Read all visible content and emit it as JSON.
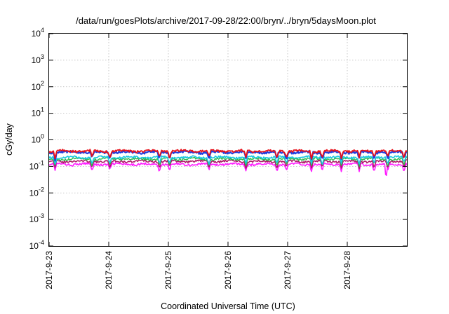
{
  "chart_data": {
    "type": "line",
    "title": "/data/run/goesPlots/archive/2017-09-28/22:00/bryn/../bryn/5daysMoon.plot",
    "xlabel": "Coordinated Universal Time (UTC)",
    "ylabel": "cGy/day",
    "yscale": "log",
    "ylim_exponents": [
      -4,
      4
    ],
    "y_tick_exponents": [
      -4,
      -3,
      -2,
      -1,
      0,
      1,
      2,
      3,
      4
    ],
    "y_tick_base": "10",
    "xlim_days": [
      0,
      6.0
    ],
    "x_ticks": [
      {
        "day": 0,
        "label": "2017-9-23"
      },
      {
        "day": 1,
        "label": "2017-9-24"
      },
      {
        "day": 2,
        "label": "2017-9-25"
      },
      {
        "day": 3,
        "label": "2017-9-26"
      },
      {
        "day": 4,
        "label": "2017-9-27"
      },
      {
        "day": 5,
        "label": "2017-9-28"
      }
    ],
    "grid": true,
    "legend": "none",
    "series": [
      {
        "color": "#e8111a",
        "baseline": 0.38,
        "lw": 1.8
      },
      {
        "color": "#1f3fe0",
        "baseline": 0.34,
        "lw": 2.2
      },
      {
        "color": "#19c7e0",
        "baseline": 0.22,
        "lw": 1.6
      },
      {
        "color": "#2db84a",
        "baseline": 0.19,
        "lw": 1.4
      },
      {
        "color": "#b01a6a",
        "baseline": 0.155,
        "lw": 1.6
      },
      {
        "color": "#ff1aff",
        "baseline": 0.12,
        "lw": 1.6
      }
    ]
  }
}
